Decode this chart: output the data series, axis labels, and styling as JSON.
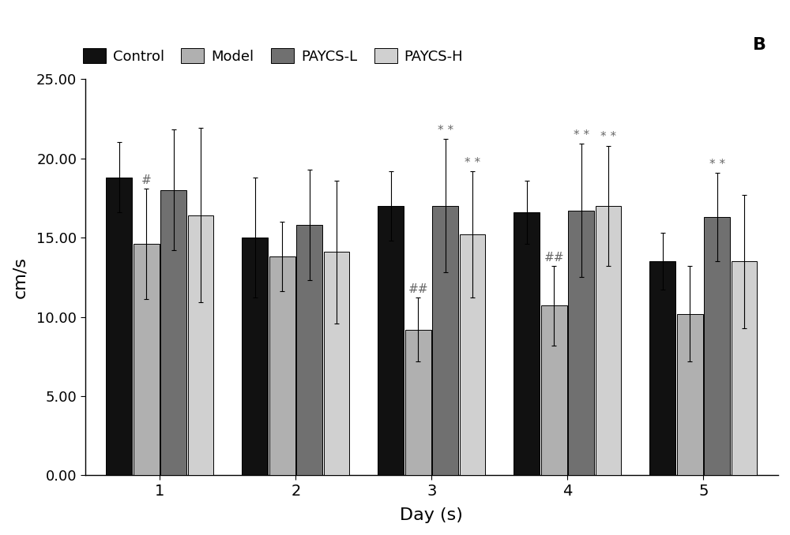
{
  "days": [
    1,
    2,
    3,
    4,
    5
  ],
  "groups": [
    "Control",
    "Model",
    "PAYCS-L",
    "PAYCS-H"
  ],
  "colors": [
    "#111111",
    "#b0b0b0",
    "#707070",
    "#d0d0d0"
  ],
  "bar_values": [
    [
      18.8,
      14.6,
      18.0,
      16.4
    ],
    [
      15.0,
      13.8,
      15.8,
      14.1
    ],
    [
      17.0,
      9.2,
      17.0,
      15.2
    ],
    [
      16.6,
      10.7,
      16.7,
      17.0
    ],
    [
      13.5,
      10.2,
      16.3,
      13.5
    ]
  ],
  "error_values": [
    [
      2.2,
      3.5,
      3.8,
      5.5
    ],
    [
      3.8,
      2.2,
      3.5,
      4.5
    ],
    [
      2.2,
      2.0,
      4.2,
      4.0
    ],
    [
      2.0,
      2.5,
      4.2,
      3.8
    ],
    [
      1.8,
      3.0,
      2.8,
      4.2
    ]
  ],
  "ylabel": "cm/s",
  "xlabel": "Day (s)",
  "ylim": [
    0,
    25
  ],
  "yticks": [
    0.0,
    5.0,
    10.0,
    15.0,
    20.0,
    25.0
  ],
  "panel_label": "B",
  "background_color": "#ffffff",
  "bar_width": 0.19,
  "ann_fontsize": 11
}
